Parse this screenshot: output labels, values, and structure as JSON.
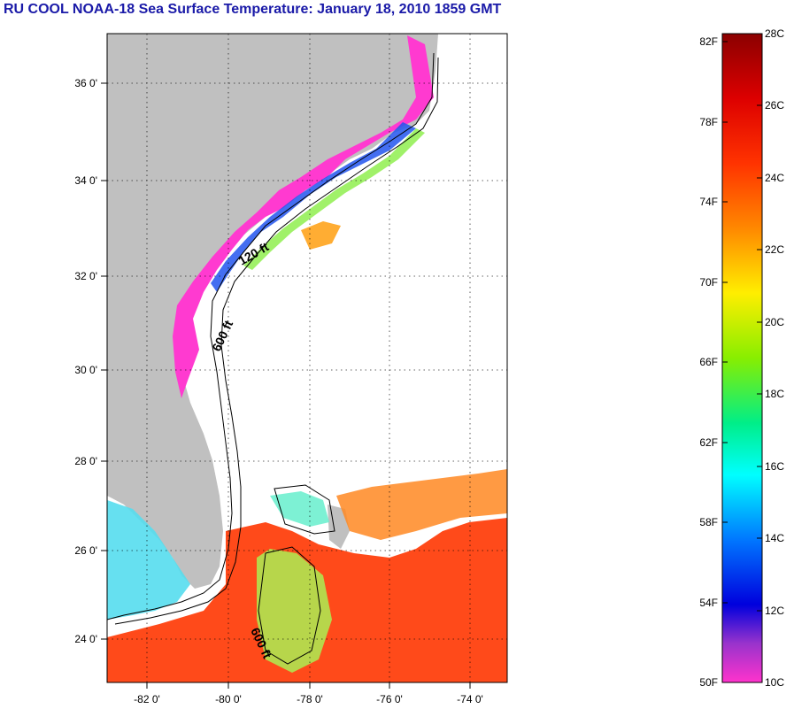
{
  "title": "RU COOL  NOAA-18  Sea Surface Temperature:  January 18, 2010 1859 GMT",
  "lat_labels": [
    "36 0'",
    "34 0'",
    "32 0'",
    "30 0'",
    "28 0'",
    "26 0'",
    "24 0'"
  ],
  "lon_labels": [
    "-82 0'",
    "-80 0'",
    "-78 0'",
    "-76 0'",
    "-74 0'"
  ],
  "contour_labels": [
    "120 ft",
    "600 ft",
    "600 ft"
  ],
  "colorbar": {
    "fahrenheit_labels": [
      "82F",
      "78F",
      "74F",
      "70F",
      "66F",
      "62F",
      "58F",
      "54F",
      "50F"
    ],
    "celsius_labels": [
      "28C",
      "26C",
      "24C",
      "22C",
      "20C",
      "18C",
      "16C",
      "14C",
      "12C",
      "10C"
    ],
    "colors": [
      "#8b0000",
      "#ee1100",
      "#ff6600",
      "#ff9900",
      "#ffff00",
      "#88ee00",
      "#00ee88",
      "#00ffff",
      "#0088ff",
      "#0000ee",
      "#8833cc",
      "#ff33cc"
    ]
  },
  "colors": {
    "land": "#c0c0c0",
    "title": "#1a1aa8",
    "cold": "#ff3ad0",
    "warm": "#ff4a1a"
  }
}
